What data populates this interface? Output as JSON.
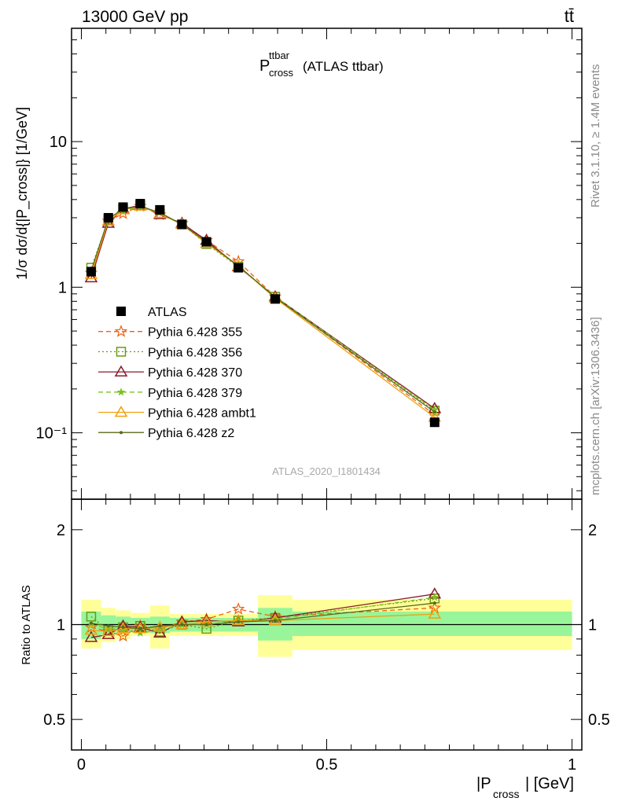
{
  "header": {
    "left": "13000 GeV pp",
    "right": "tt̄"
  },
  "side_labels": {
    "rivet": "Rivet 3.1.10, ≥ 1.4M events",
    "mcplots": "mcplots.cern.ch [arXiv:1306.3436]"
  },
  "chart_data": [
    {
      "type": "line",
      "panel": "main",
      "title_main": "P",
      "title_sup": "ttbar",
      "title_sub": "cross",
      "title_suffix": "(ATLAS ttbar)",
      "watermark": "ATLAS_2020_I1801434",
      "ylabel": "1/σ dσ/d{|P_cross|} [1/GeV]",
      "yscale": "log",
      "ylim": [
        0.035,
        60
      ],
      "xlim": [
        -0.02,
        1.02
      ],
      "yticks": [
        {
          "value": 10,
          "label": "10"
        },
        {
          "value": 1,
          "label": "1"
        },
        {
          "value": 0.1,
          "label": "10⁻¹"
        }
      ],
      "x": [
        0.02,
        0.055,
        0.085,
        0.12,
        0.16,
        0.205,
        0.255,
        0.32,
        0.395,
        0.72
      ],
      "series": [
        {
          "name": "ATLAS",
          "color": "#000000",
          "style": "solid",
          "marker": "square-filled",
          "values": [
            1.28,
            3.0,
            3.55,
            3.75,
            3.4,
            2.7,
            2.05,
            1.36,
            0.83,
            0.118
          ]
        },
        {
          "name": "Pythia 6.428 355",
          "color": "#f06010",
          "style": "dashed",
          "marker": "star-open",
          "values": [
            1.25,
            2.85,
            3.2,
            3.6,
            3.15,
            2.75,
            2.1,
            1.5,
            0.86,
            0.133
          ]
        },
        {
          "name": "Pythia 6.428 356",
          "color": "#6b9a12",
          "style": "dotted",
          "marker": "square-open",
          "values": [
            1.36,
            2.9,
            3.45,
            3.65,
            3.2,
            2.7,
            1.98,
            1.38,
            0.86,
            0.142
          ]
        },
        {
          "name": "Pythia 6.428 370",
          "color": "#8b1a2a",
          "style": "solid",
          "marker": "triangle-open",
          "values": [
            1.16,
            2.75,
            3.45,
            3.65,
            3.15,
            2.75,
            2.1,
            1.38,
            0.86,
            0.147
          ]
        },
        {
          "name": "Pythia 6.428 379",
          "color": "#7cc020",
          "style": "dashed",
          "marker": "star-filled",
          "values": [
            1.28,
            2.9,
            3.35,
            3.55,
            3.25,
            2.7,
            2.05,
            1.4,
            0.86,
            0.144
          ]
        },
        {
          "name": "Pythia 6.428 ambt1",
          "color": "#f0a010",
          "style": "solid",
          "marker": "triangle-open",
          "values": [
            1.22,
            2.85,
            3.4,
            3.6,
            3.2,
            2.7,
            2.0,
            1.4,
            0.84,
            0.128
          ]
        },
        {
          "name": "Pythia 6.428 z2",
          "color": "#5a6a1a",
          "style": "solid",
          "marker": "dot",
          "values": [
            1.3,
            2.95,
            3.45,
            3.6,
            3.25,
            2.7,
            2.05,
            1.4,
            0.85,
            0.139
          ]
        }
      ]
    },
    {
      "type": "line",
      "panel": "ratio",
      "ylabel": "Ratio to ATLAS",
      "xlabel_main": "|P",
      "xlabel_sub": "cross",
      "xlabel_suffix": "| [GeV]",
      "yscale": "log",
      "ylim": [
        0.4,
        2.5
      ],
      "xlim": [
        -0.02,
        1.02
      ],
      "yticks": [
        {
          "value": 2,
          "label": "2"
        },
        {
          "value": 1,
          "label": "1"
        },
        {
          "value": 0.5,
          "label": "0.5"
        }
      ],
      "xticks": [
        {
          "value": 0,
          "label": "0"
        },
        {
          "value": 0.5,
          "label": "0.5"
        },
        {
          "value": 1,
          "label": "1"
        }
      ],
      "bands": [
        {
          "x0": 0.0,
          "x1": 0.04,
          "inner": [
            0.9,
            1.1
          ],
          "outer": [
            0.84,
            1.2
          ]
        },
        {
          "x0": 0.04,
          "x1": 0.07,
          "inner": [
            0.93,
            1.07
          ],
          "outer": [
            0.88,
            1.13
          ]
        },
        {
          "x0": 0.07,
          "x1": 0.1,
          "inner": [
            0.94,
            1.06
          ],
          "outer": [
            0.9,
            1.11
          ]
        },
        {
          "x0": 0.1,
          "x1": 0.14,
          "inner": [
            0.95,
            1.05
          ],
          "outer": [
            0.92,
            1.09
          ]
        },
        {
          "x0": 0.14,
          "x1": 0.18,
          "inner": [
            0.94,
            1.06
          ],
          "outer": [
            0.84,
            1.15
          ]
        },
        {
          "x0": 0.18,
          "x1": 0.23,
          "inner": [
            0.95,
            1.05
          ],
          "outer": [
            0.92,
            1.08
          ]
        },
        {
          "x0": 0.23,
          "x1": 0.28,
          "inner": [
            0.95,
            1.05
          ],
          "outer": [
            0.92,
            1.08
          ]
        },
        {
          "x0": 0.28,
          "x1": 0.36,
          "inner": [
            0.95,
            1.05
          ],
          "outer": [
            0.92,
            1.08
          ]
        },
        {
          "x0": 0.36,
          "x1": 0.43,
          "inner": [
            0.89,
            1.13
          ],
          "outer": [
            0.79,
            1.24
          ]
        },
        {
          "x0": 0.43,
          "x1": 1.0,
          "inner": [
            0.92,
            1.1
          ],
          "outer": [
            0.83,
            1.2
          ]
        }
      ],
      "x": [
        0.02,
        0.055,
        0.085,
        0.12,
        0.16,
        0.205,
        0.255,
        0.32,
        0.395,
        0.72
      ],
      "series": [
        {
          "name": "Pythia 6.428 355",
          "color": "#f06010",
          "style": "dashed",
          "marker": "star-open",
          "values": [
            0.98,
            0.95,
            0.92,
            0.99,
            0.97,
            1.02,
            1.04,
            1.12,
            1.06,
            1.13
          ]
        },
        {
          "name": "Pythia 6.428 356",
          "color": "#6b9a12",
          "style": "dotted",
          "marker": "square-open",
          "values": [
            1.06,
            0.96,
            0.98,
            0.99,
            0.95,
            1.0,
            0.97,
            1.03,
            1.05,
            1.21
          ]
        },
        {
          "name": "Pythia 6.428 370",
          "color": "#8b1a2a",
          "style": "solid",
          "marker": "triangle-open",
          "values": [
            0.91,
            0.93,
            0.99,
            0.98,
            0.94,
            1.02,
            1.03,
            1.02,
            1.05,
            1.25
          ]
        },
        {
          "name": "Pythia 6.428 379",
          "color": "#7cc020",
          "style": "dashed",
          "marker": "star-filled",
          "values": [
            1.0,
            0.97,
            0.96,
            0.94,
            0.96,
            1.0,
            1.0,
            1.03,
            1.04,
            1.22
          ]
        },
        {
          "name": "Pythia 6.428 ambt1",
          "color": "#f0a010",
          "style": "solid",
          "marker": "triangle-open",
          "values": [
            0.96,
            0.95,
            0.97,
            0.97,
            0.98,
            1.0,
            1.02,
            1.03,
            1.03,
            1.08
          ]
        },
        {
          "name": "Pythia 6.428 z2",
          "color": "#5a6a1a",
          "style": "solid",
          "marker": "dot",
          "values": [
            1.01,
            0.99,
            0.98,
            0.97,
            0.99,
            1.0,
            1.0,
            1.02,
            1.03,
            1.17
          ]
        }
      ]
    }
  ]
}
